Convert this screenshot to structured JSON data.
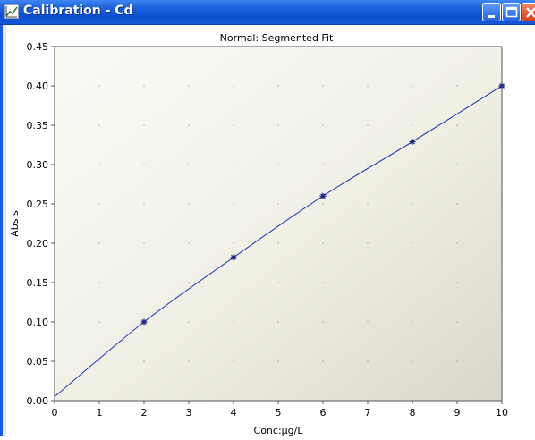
{
  "window": {
    "title": "Calibration - Cd",
    "title_color": "#ffffff",
    "titlebar_color": "#0b4fcf"
  },
  "titlebar_buttons": [
    "minimize-icon",
    "maximize-icon",
    "close-icon"
  ],
  "chart_data": {
    "type": "line",
    "title": "Normal: Segmented Fit",
    "xlabel": "Conc:µg/L",
    "ylabel": "Abs s",
    "xlim": [
      0,
      10
    ],
    "ylim": [
      0,
      0.45
    ],
    "x_ticks": [
      "0",
      "1",
      "2",
      "3",
      "4",
      "5",
      "6",
      "7",
      "8",
      "9",
      "10"
    ],
    "y_ticks": [
      "0.00",
      "0.05",
      "0.10",
      "0.15",
      "0.20",
      "0.25",
      "0.30",
      "0.35",
      "0.40",
      "0.45"
    ],
    "grid": "dotted",
    "background": "gradient",
    "line_color": "#2a3fb8",
    "marker_color": "#1a237e",
    "series": [
      {
        "points": [
          {
            "x": 0,
            "y": 0.005
          },
          {
            "x": 2,
            "y": 0.1
          },
          {
            "x": 4,
            "y": 0.182
          },
          {
            "x": 6,
            "y": 0.26
          },
          {
            "x": 8,
            "y": 0.329
          },
          {
            "x": 10,
            "y": 0.4
          }
        ]
      }
    ]
  }
}
